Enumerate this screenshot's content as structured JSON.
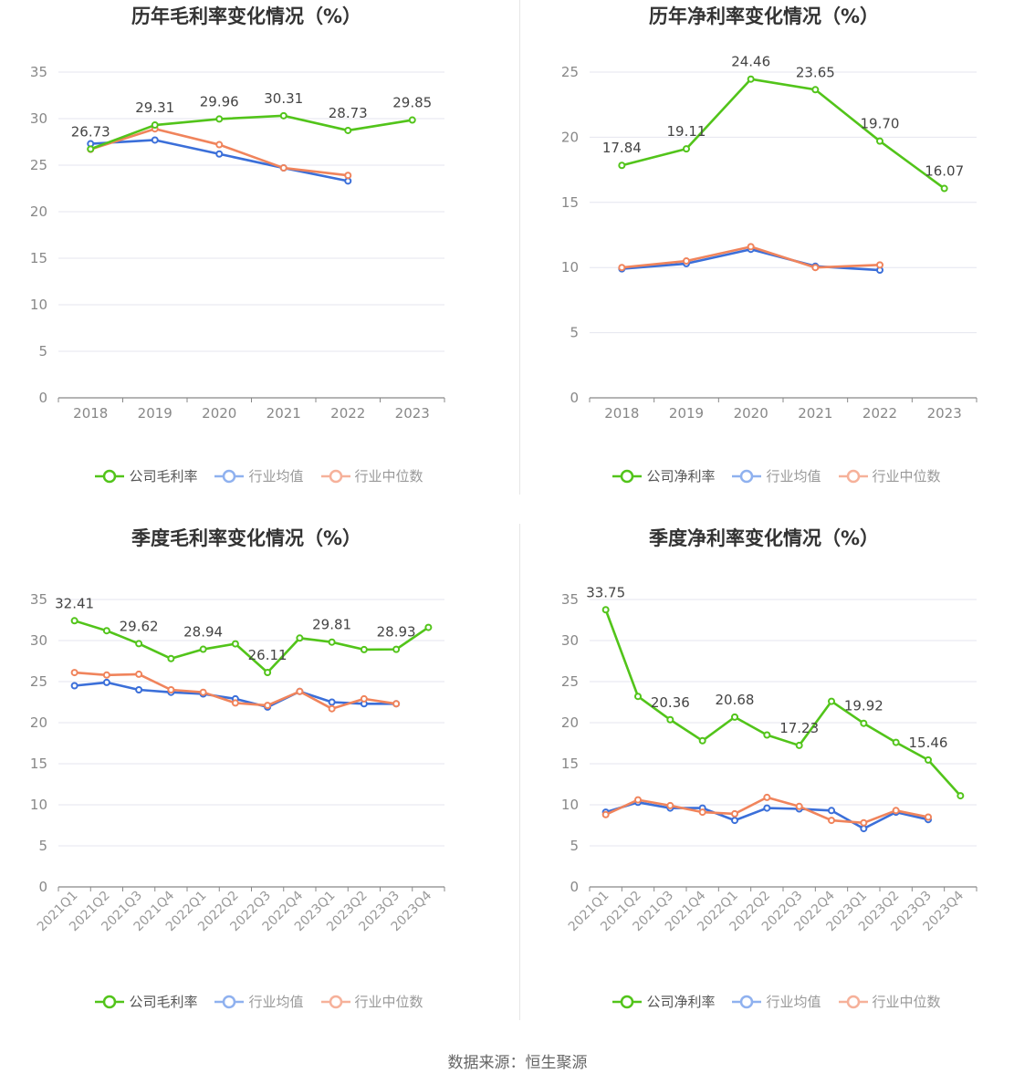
{
  "footer": "数据来源：恒生聚源",
  "colors": {
    "company": "#52c41a",
    "avg": "#3b6fd9",
    "median": "#f0845c"
  },
  "chart_data": [
    {
      "type": "line",
      "title": "历年毛利率变化情况（%）",
      "categories": [
        "2018",
        "2019",
        "2020",
        "2021",
        "2022",
        "2023"
      ],
      "ylim": [
        0,
        35
      ],
      "yticks": [
        0,
        5,
        10,
        15,
        20,
        25,
        30,
        35
      ],
      "grid": true,
      "legend_position": "bottom",
      "series": [
        {
          "name": "公司毛利率",
          "values": [
            26.73,
            29.31,
            29.96,
            30.31,
            28.73,
            29.85
          ],
          "labels": [
            "26.73",
            "29.31",
            "29.96",
            "30.31",
            "28.73",
            "29.85"
          ]
        },
        {
          "name": "行业均值",
          "values": [
            27.3,
            27.7,
            26.2,
            24.7,
            23.3,
            null
          ]
        },
        {
          "name": "行业中位数",
          "values": [
            26.7,
            28.9,
            27.2,
            24.7,
            23.9,
            null
          ]
        }
      ]
    },
    {
      "type": "line",
      "title": "历年净利率变化情况（%）",
      "categories": [
        "2018",
        "2019",
        "2020",
        "2021",
        "2022",
        "2023"
      ],
      "ylim": [
        0,
        25
      ],
      "yticks": [
        0,
        5,
        10,
        15,
        20,
        25
      ],
      "grid": true,
      "legend_position": "bottom",
      "series": [
        {
          "name": "公司净利率",
          "values": [
            17.84,
            19.11,
            24.46,
            23.65,
            19.7,
            16.07
          ],
          "labels": [
            "17.84",
            "19.11",
            "24.46",
            "23.65",
            "19.70",
            "16.07"
          ]
        },
        {
          "name": "行业均值",
          "values": [
            9.9,
            10.3,
            11.4,
            10.1,
            9.8,
            null
          ]
        },
        {
          "name": "行业中位数",
          "values": [
            10.0,
            10.5,
            11.6,
            10.0,
            10.2,
            null
          ]
        }
      ]
    },
    {
      "type": "line",
      "title": "季度毛利率变化情况（%）",
      "categories": [
        "2021Q1",
        "2021Q2",
        "2021Q3",
        "2021Q4",
        "2022Q1",
        "2022Q2",
        "2022Q3",
        "2022Q4",
        "2023Q1",
        "2023Q2",
        "2023Q3",
        "2023Q4"
      ],
      "ylim": [
        0,
        35
      ],
      "yticks": [
        0,
        5,
        10,
        15,
        20,
        25,
        30,
        35
      ],
      "grid": true,
      "legend_position": "bottom",
      "series": [
        {
          "name": "公司毛利率",
          "values": [
            32.41,
            31.2,
            29.62,
            27.8,
            28.94,
            29.6,
            26.11,
            30.3,
            29.81,
            28.9,
            28.93,
            31.6
          ],
          "labels": [
            "32.41",
            "",
            "29.62",
            "",
            "28.94",
            "",
            "26.11",
            "",
            "29.81",
            "",
            "28.93",
            ""
          ]
        },
        {
          "name": "行业均值",
          "values": [
            24.5,
            24.9,
            24.0,
            23.7,
            23.5,
            22.9,
            21.9,
            23.8,
            22.5,
            22.3,
            22.3,
            null
          ]
        },
        {
          "name": "行业中位数",
          "values": [
            26.1,
            25.8,
            25.9,
            24.0,
            23.7,
            22.4,
            22.1,
            23.8,
            21.7,
            22.9,
            22.3,
            null
          ]
        }
      ]
    },
    {
      "type": "line",
      "title": "季度净利率变化情况（%）",
      "categories": [
        "2021Q1",
        "2021Q2",
        "2021Q3",
        "2021Q4",
        "2022Q1",
        "2022Q2",
        "2022Q3",
        "2022Q4",
        "2023Q1",
        "2023Q2",
        "2023Q3",
        "2023Q4"
      ],
      "ylim": [
        0,
        35
      ],
      "yticks": [
        0,
        5,
        10,
        15,
        20,
        25,
        30,
        35
      ],
      "grid": true,
      "legend_position": "bottom",
      "series": [
        {
          "name": "公司净利率",
          "values": [
            33.75,
            23.2,
            20.36,
            17.8,
            20.68,
            18.5,
            17.23,
            22.6,
            19.92,
            17.6,
            15.46,
            11.1
          ],
          "labels": [
            "33.75",
            "",
            "20.36",
            "",
            "20.68",
            "",
            "17.23",
            "",
            "19.92",
            "",
            "15.46",
            ""
          ]
        },
        {
          "name": "行业均值",
          "values": [
            9.1,
            10.3,
            9.6,
            9.6,
            8.1,
            9.6,
            9.5,
            9.3,
            7.1,
            9.1,
            8.2,
            null
          ]
        },
        {
          "name": "行业中位数",
          "values": [
            8.8,
            10.6,
            9.9,
            9.1,
            8.9,
            10.9,
            9.8,
            8.1,
            7.8,
            9.3,
            8.5,
            null
          ]
        }
      ]
    }
  ]
}
